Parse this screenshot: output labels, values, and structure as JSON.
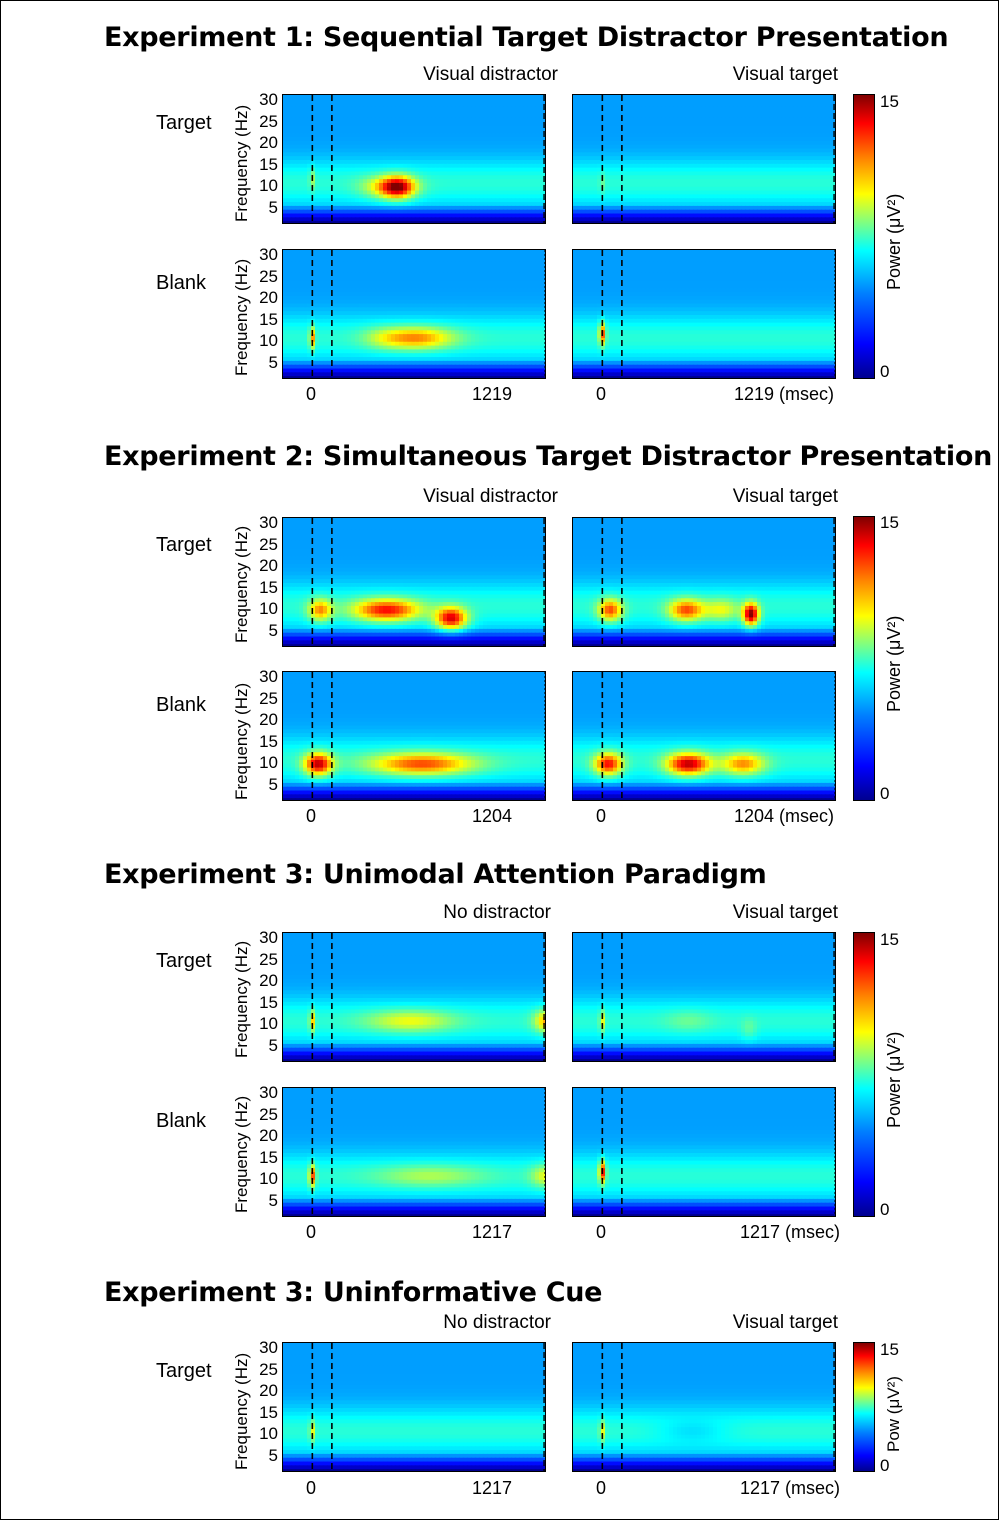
{
  "chart_data": [
    {
      "type": "heatmap",
      "title": "Experiment 1: Sequential Target Distractor Presentation",
      "columns": [
        "Visual distractor",
        "Visual target"
      ],
      "rows": [
        "Target",
        "Blank"
      ],
      "ylabel": "Frequency (Hz)",
      "yticks": [
        "30",
        "25",
        "20",
        "15",
        "10",
        "5"
      ],
      "xticks_left": [
        "0",
        "1219"
      ],
      "xticks_right": [
        "0",
        "1219 (msec)"
      ],
      "colorbar": {
        "label": "Power (μV²)",
        "min": "0",
        "max": "15"
      },
      "panels": {
        "target_left": [
          [
            0,
            14,
            12,
            8
          ],
          [
            390,
            130,
            10,
            10
          ],
          [
            440,
            80,
            10,
            12
          ]
        ],
        "target_right": [
          [
            0,
            14,
            11,
            7
          ],
          [
            420,
            160,
            10,
            6
          ],
          [
            680,
            70,
            9,
            6
          ]
        ],
        "blank_left": [
          [
            0,
            14,
            11,
            11
          ],
          [
            530,
            190,
            11,
            11
          ],
          [
            360,
            110,
            11,
            7
          ]
        ],
        "blank_right": [
          [
            0,
            16,
            12,
            12
          ],
          [
            500,
            260,
            11,
            6
          ]
        ]
      }
    },
    {
      "type": "heatmap",
      "title": "Experiment 2: Simultaneous Target Distractor Presentation",
      "columns": [
        "Visual distractor",
        "Visual target"
      ],
      "rows": [
        "Target",
        "Blank"
      ],
      "ylabel": "Frequency (Hz)",
      "yticks": [
        "30",
        "25",
        "20",
        "15",
        "10",
        "5"
      ],
      "xticks_left": [
        "0",
        "1204"
      ],
      "xticks_right": [
        "0",
        "1204 (msec)"
      ],
      "colorbar": {
        "label": "Power (μV²)",
        "min": "0",
        "max": "15"
      },
      "panels": {
        "target_left": [
          [
            40,
            60,
            10,
            11
          ],
          [
            380,
            170,
            10,
            13
          ],
          [
            710,
            80,
            8,
            14
          ]
        ],
        "target_right": [
          [
            40,
            60,
            10,
            12
          ],
          [
            430,
            90,
            10,
            12
          ],
          [
            610,
            90,
            10,
            9
          ],
          [
            760,
            40,
            9,
            15
          ]
        ],
        "blank_left": [
          [
            30,
            70,
            10,
            14
          ],
          [
            560,
            260,
            10,
            12
          ]
        ],
        "blank_right": [
          [
            30,
            70,
            10,
            13
          ],
          [
            440,
            110,
            10,
            14
          ],
          [
            720,
            110,
            10,
            11
          ]
        ]
      }
    },
    {
      "type": "heatmap",
      "title": "Experiment 3: Unimodal Attention Paradigm",
      "columns": [
        "No distractor",
        "Visual target"
      ],
      "rows": [
        "Target",
        "Blank"
      ],
      "ylabel": "Frequency (Hz)",
      "yticks": [
        "30",
        "25",
        "20",
        "15",
        "10",
        "5"
      ],
      "xticks_left": [
        "0",
        "1217"
      ],
      "xticks_right": [
        "0",
        "1217 (msec)"
      ],
      "colorbar": {
        "label": "Power (μV²)",
        "min": "0",
        "max": "15"
      },
      "panels": {
        "target_left": [
          [
            0,
            14,
            11,
            10
          ],
          [
            500,
            220,
            11,
            9
          ],
          [
            1210,
            70,
            11,
            11
          ]
        ],
        "target_right": [
          [
            0,
            14,
            11,
            9
          ],
          [
            440,
            120,
            11,
            7
          ],
          [
            750,
            40,
            9,
            7
          ]
        ],
        "blank_left": [
          [
            0,
            16,
            11,
            12
          ],
          [
            600,
            270,
            11,
            8
          ],
          [
            1200,
            80,
            11,
            9
          ]
        ],
        "blank_right": [
          [
            0,
            16,
            12,
            13
          ],
          [
            480,
            170,
            11,
            6
          ]
        ]
      }
    },
    {
      "type": "heatmap",
      "title": "Experiment 3: Uninformative Cue",
      "columns": [
        "No distractor",
        "Visual target"
      ],
      "rows": [
        "Target"
      ],
      "ylabel": "Frequency (Hz)",
      "yticks": [
        "30",
        "25",
        "20",
        "15",
        "10",
        "5"
      ],
      "xticks_left": [
        "0",
        "1217"
      ],
      "xticks_right": [
        "0",
        "1217 (msec)"
      ],
      "colorbar": {
        "label": "Pow (μV²)",
        "min": "0",
        "max": "15"
      },
      "panels": {
        "target_left": [
          [
            0,
            14,
            11,
            9
          ],
          [
            480,
            200,
            11,
            6
          ]
        ],
        "target_right": [
          [
            0,
            14,
            11,
            9
          ],
          [
            460,
            190,
            11,
            5
          ]
        ]
      }
    }
  ]
}
